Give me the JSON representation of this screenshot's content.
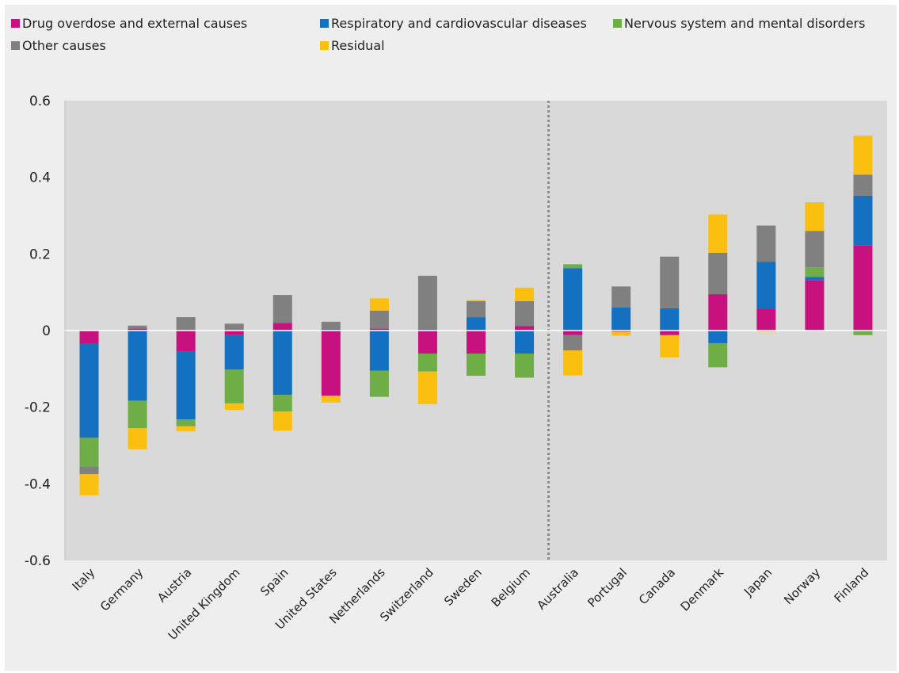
{
  "chart_data": {
    "type": "bar",
    "stacked": true,
    "title": "",
    "xlabel": "",
    "ylabel": "",
    "ylim": [
      -0.6,
      0.6
    ],
    "yticks": [
      -0.6,
      -0.4,
      -0.2,
      0,
      0.2,
      0.4,
      0.6
    ],
    "ytick_labels": [
      "-0.6",
      "-0.4",
      "-0.2",
      "0",
      "0.2",
      "0.4",
      "0.6"
    ],
    "grid": false,
    "legend_position": "top",
    "divider_after_category": "Belgium",
    "categories": [
      "Italy",
      "Germany",
      "Austria",
      "United Kingdom",
      "Spain",
      "United States",
      "Netherlands",
      "Switzerland",
      "Sweden",
      "Belgium",
      "Australia",
      "Portugal",
      "Canada",
      "Denmark",
      "Japan",
      "Norway",
      "Finland"
    ],
    "series": [
      {
        "name": "Drug overdose and external causes",
        "color": "#c7117f",
        "values": [
          -0.035,
          0.005,
          -0.055,
          -0.012,
          0.02,
          -0.17,
          0.005,
          -0.06,
          -0.06,
          0.012,
          -0.012,
          -0.003,
          -0.012,
          0.095,
          0.057,
          0.132,
          0.222
        ]
      },
      {
        "name": "Respiratory and cardiovascular diseases",
        "color": "#1470c0",
        "values": [
          -0.245,
          -0.183,
          -0.177,
          -0.09,
          -0.168,
          0.003,
          -0.105,
          0.003,
          0.035,
          -0.06,
          0.163,
          0.06,
          0.058,
          -0.033,
          0.122,
          0.008,
          0.13
        ]
      },
      {
        "name": "Nervous system and mental disorders",
        "color": "#6fad47",
        "values": [
          -0.075,
          -0.072,
          -0.018,
          -0.088,
          -0.043,
          0,
          -0.068,
          -0.047,
          -0.058,
          -0.063,
          0.01,
          0,
          0,
          -0.063,
          0,
          0.025,
          -0.012
        ]
      },
      {
        "name": "Other causes",
        "color": "#808080",
        "values": [
          -0.02,
          0.008,
          0.035,
          0.018,
          0.073,
          0.02,
          0.047,
          0.14,
          0.042,
          0.065,
          -0.04,
          0.055,
          0.135,
          0.108,
          0.095,
          0.095,
          0.055
        ]
      },
      {
        "name": "Residual",
        "color": "#fbbf0f",
        "values": [
          -0.055,
          -0.055,
          -0.013,
          -0.017,
          -0.05,
          -0.018,
          0.032,
          -0.085,
          0.003,
          0.035,
          -0.065,
          -0.01,
          -0.058,
          0.1,
          -0.003,
          0.075,
          0.102
        ]
      }
    ]
  }
}
